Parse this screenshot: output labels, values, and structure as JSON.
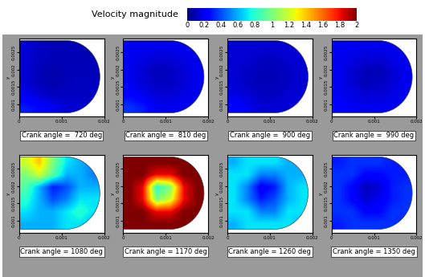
{
  "colorbar": {
    "label": "Velocity magnitude",
    "range": [
      0,
      2
    ],
    "ticks": [
      0,
      0.2,
      0.4,
      0.6,
      0.8,
      1,
      1.2,
      1.4,
      1.6,
      1.8,
      2
    ]
  },
  "chart_data": [
    {
      "type": "heatmap",
      "title": "Crank angle =  720 deg",
      "ylabel": "y",
      "xlim": [
        0,
        0.002
      ],
      "ylim": [
        0.00065,
        0.0029
      ],
      "xticks": [
        0,
        0.001,
        0.002
      ],
      "yticks": [
        0.001,
        0.0015,
        0.002,
        0.0025
      ],
      "cells": [
        [
          0.15,
          0.12,
          0.1,
          0.1,
          0.1,
          0.1
        ],
        [
          0.15,
          0.12,
          0.1,
          0.1,
          0.1,
          0.1
        ],
        [
          0.15,
          0.1,
          0.08,
          0.1,
          0.1,
          0.1
        ],
        [
          0.15,
          0.1,
          0.08,
          0.1,
          0.12,
          0.12
        ],
        [
          0.2,
          0.15,
          0.12,
          0.12,
          0.12,
          0.12
        ],
        [
          0.3,
          0.25,
          0.2,
          0.15,
          0.15,
          0.15
        ]
      ]
    },
    {
      "type": "heatmap",
      "title": "Crank angle =  810 deg",
      "ylabel": "y",
      "xlim": [
        0,
        0.002
      ],
      "ylim": [
        0.00065,
        0.0029
      ],
      "xticks": [
        0,
        0.001,
        0.002
      ],
      "yticks": [
        0.001,
        0.0015,
        0.002,
        0.0025
      ],
      "cells": [
        [
          0.2,
          0.2,
          0.2,
          0.2,
          0.2,
          0.2
        ],
        [
          0.2,
          0.18,
          0.15,
          0.15,
          0.18,
          0.2
        ],
        [
          0.2,
          0.15,
          0.1,
          0.12,
          0.15,
          0.2
        ],
        [
          0.2,
          0.15,
          0.12,
          0.12,
          0.15,
          0.2
        ],
        [
          0.25,
          0.2,
          0.15,
          0.15,
          0.18,
          0.2
        ],
        [
          0.35,
          0.3,
          0.2,
          0.2,
          0.2,
          0.2
        ]
      ]
    },
    {
      "type": "heatmap",
      "title": "Crank angle =  900 deg",
      "ylabel": "y",
      "xlim": [
        0,
        0.002
      ],
      "ylim": [
        0.00065,
        0.0029
      ],
      "xticks": [
        0,
        0.001,
        0.002
      ],
      "yticks": [
        0.001,
        0.0015,
        0.002,
        0.0025
      ],
      "cells": [
        [
          0.15,
          0.15,
          0.15,
          0.15,
          0.15,
          0.15
        ],
        [
          0.15,
          0.15,
          0.12,
          0.12,
          0.15,
          0.15
        ],
        [
          0.15,
          0.12,
          0.1,
          0.1,
          0.12,
          0.15
        ],
        [
          0.15,
          0.12,
          0.1,
          0.1,
          0.12,
          0.15
        ],
        [
          0.18,
          0.15,
          0.12,
          0.12,
          0.15,
          0.15
        ],
        [
          0.25,
          0.2,
          0.15,
          0.15,
          0.15,
          0.15
        ]
      ]
    },
    {
      "type": "heatmap",
      "title": "Crank angle =  990 deg",
      "ylabel": "y",
      "xlim": [
        0,
        0.002
      ],
      "ylim": [
        0.00065,
        0.0029
      ],
      "xticks": [
        0,
        0.001,
        0.002
      ],
      "yticks": [
        0.001,
        0.0015,
        0.002,
        0.0025
      ],
      "cells": [
        [
          0.2,
          0.2,
          0.2,
          0.2,
          0.2,
          0.2
        ],
        [
          0.2,
          0.18,
          0.15,
          0.15,
          0.18,
          0.2
        ],
        [
          0.2,
          0.15,
          0.1,
          0.1,
          0.15,
          0.2
        ],
        [
          0.2,
          0.15,
          0.1,
          0.12,
          0.15,
          0.2
        ],
        [
          0.2,
          0.18,
          0.15,
          0.15,
          0.18,
          0.2
        ],
        [
          0.25,
          0.2,
          0.2,
          0.2,
          0.2,
          0.2
        ]
      ]
    },
    {
      "type": "heatmap",
      "title": "Crank angle = 1080 deg",
      "ylabel": "y",
      "xlim": [
        0,
        0.002
      ],
      "ylim": [
        0.00065,
        0.0029
      ],
      "xticks": [
        0,
        0.001,
        0.002
      ],
      "yticks": [
        0.001,
        0.0015,
        0.002,
        0.0025
      ],
      "cells": [
        [
          1.2,
          1.4,
          1.0,
          0.7,
          0.6,
          0.5
        ],
        [
          1.0,
          1.2,
          0.9,
          0.6,
          0.6,
          0.5
        ],
        [
          0.9,
          0.6,
          0.3,
          0.4,
          0.6,
          0.6
        ],
        [
          0.8,
          0.6,
          0.4,
          0.5,
          0.7,
          0.7
        ],
        [
          0.7,
          0.6,
          0.6,
          0.7,
          0.8,
          0.7
        ],
        [
          0.6,
          0.6,
          0.6,
          0.7,
          0.7,
          0.6
        ]
      ]
    },
    {
      "type": "heatmap",
      "title": "Crank angle = 1170 deg",
      "ylabel": "y",
      "xlim": [
        0,
        0.002
      ],
      "ylim": [
        0.00065,
        0.0029
      ],
      "xticks": [
        0,
        0.001,
        0.002
      ],
      "yticks": [
        0.001,
        0.0015,
        0.002,
        0.0025
      ],
      "cells": [
        [
          2,
          2,
          2,
          2,
          2,
          2
        ],
        [
          2,
          2,
          1.8,
          1.8,
          2,
          2
        ],
        [
          2,
          1.8,
          0.8,
          1.0,
          1.8,
          2
        ],
        [
          2,
          1.8,
          1.0,
          1.2,
          1.8,
          2
        ],
        [
          2,
          2,
          1.8,
          1.8,
          2,
          2
        ],
        [
          2,
          2,
          2,
          2,
          2,
          2
        ]
      ]
    },
    {
      "type": "heatmap",
      "title": "Crank angle = 1260 deg",
      "ylabel": "y",
      "xlim": [
        0,
        0.002
      ],
      "ylim": [
        0.00065,
        0.0029
      ],
      "xticks": [
        0,
        0.001,
        0.002
      ],
      "yticks": [
        0.001,
        0.0015,
        0.002,
        0.0025
      ],
      "cells": [
        [
          0.6,
          0.7,
          0.7,
          0.7,
          0.6,
          0.6
        ],
        [
          0.7,
          0.7,
          0.5,
          0.5,
          0.6,
          0.6
        ],
        [
          0.7,
          0.5,
          0.2,
          0.3,
          0.6,
          0.7
        ],
        [
          0.7,
          0.5,
          0.3,
          0.4,
          0.6,
          0.7
        ],
        [
          0.7,
          0.7,
          0.5,
          0.5,
          0.7,
          0.7
        ],
        [
          0.6,
          0.7,
          0.7,
          0.7,
          0.7,
          0.6
        ]
      ]
    },
    {
      "type": "heatmap",
      "title": "Crank angle = 1350 deg",
      "ylabel": "y",
      "xlim": [
        0,
        0.002
      ],
      "ylim": [
        0.00065,
        0.0029
      ],
      "xticks": [
        0,
        0.001,
        0.002
      ],
      "yticks": [
        0.001,
        0.0015,
        0.002,
        0.0025
      ],
      "cells": [
        [
          0.3,
          0.35,
          0.35,
          0.35,
          0.3,
          0.3
        ],
        [
          0.35,
          0.35,
          0.25,
          0.25,
          0.3,
          0.3
        ],
        [
          0.35,
          0.25,
          0.1,
          0.15,
          0.3,
          0.35
        ],
        [
          0.35,
          0.25,
          0.15,
          0.2,
          0.3,
          0.35
        ],
        [
          0.35,
          0.35,
          0.25,
          0.25,
          0.35,
          0.35
        ],
        [
          0.3,
          0.35,
          0.35,
          0.35,
          0.35,
          0.3
        ]
      ]
    }
  ]
}
